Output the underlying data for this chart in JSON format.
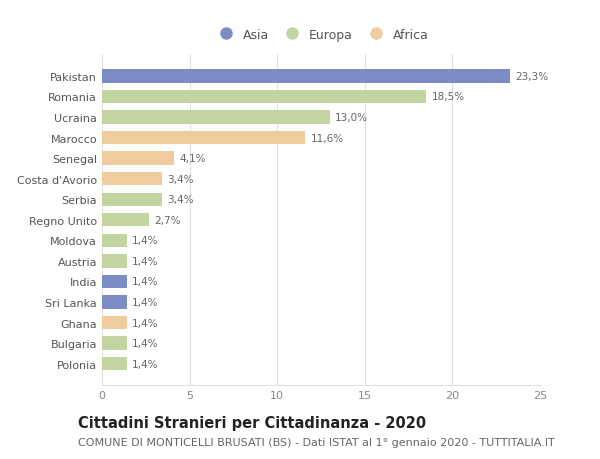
{
  "countries": [
    "Pakistan",
    "Romania",
    "Ucraina",
    "Marocco",
    "Senegal",
    "Costa d'Avorio",
    "Serbia",
    "Regno Unito",
    "Moldova",
    "Austria",
    "India",
    "Sri Lanka",
    "Ghana",
    "Bulgaria",
    "Polonia"
  ],
  "values": [
    23.3,
    18.5,
    13.0,
    11.6,
    4.1,
    3.4,
    3.4,
    2.7,
    1.4,
    1.4,
    1.4,
    1.4,
    1.4,
    1.4,
    1.4
  ],
  "labels": [
    "23,3%",
    "18,5%",
    "13,0%",
    "11,6%",
    "4,1%",
    "3,4%",
    "3,4%",
    "2,7%",
    "1,4%",
    "1,4%",
    "1,4%",
    "1,4%",
    "1,4%",
    "1,4%",
    "1,4%"
  ],
  "regions": [
    "Asia",
    "Europa",
    "Europa",
    "Africa",
    "Africa",
    "Africa",
    "Europa",
    "Europa",
    "Europa",
    "Europa",
    "Asia",
    "Asia",
    "Africa",
    "Europa",
    "Europa"
  ],
  "colors": {
    "Asia": "#7b8dc4",
    "Europa": "#c2d4a0",
    "Africa": "#f0cb9e"
  },
  "legend_order": [
    "Asia",
    "Europa",
    "Africa"
  ],
  "title": "Cittadini Stranieri per Cittadinanza - 2020",
  "subtitle": "COMUNE DI MONTICELLI BRUSATI (BS) - Dati ISTAT al 1° gennaio 2020 - TUTTITALIA.IT",
  "xlim": [
    0,
    25
  ],
  "xticks": [
    0,
    5,
    10,
    15,
    20,
    25
  ],
  "bg_color": "#ffffff",
  "grid_color": "#e0e0e0",
  "bar_height": 0.65,
  "title_fontsize": 10.5,
  "subtitle_fontsize": 8,
  "label_fontsize": 7.5,
  "tick_fontsize": 8,
  "legend_fontsize": 9
}
